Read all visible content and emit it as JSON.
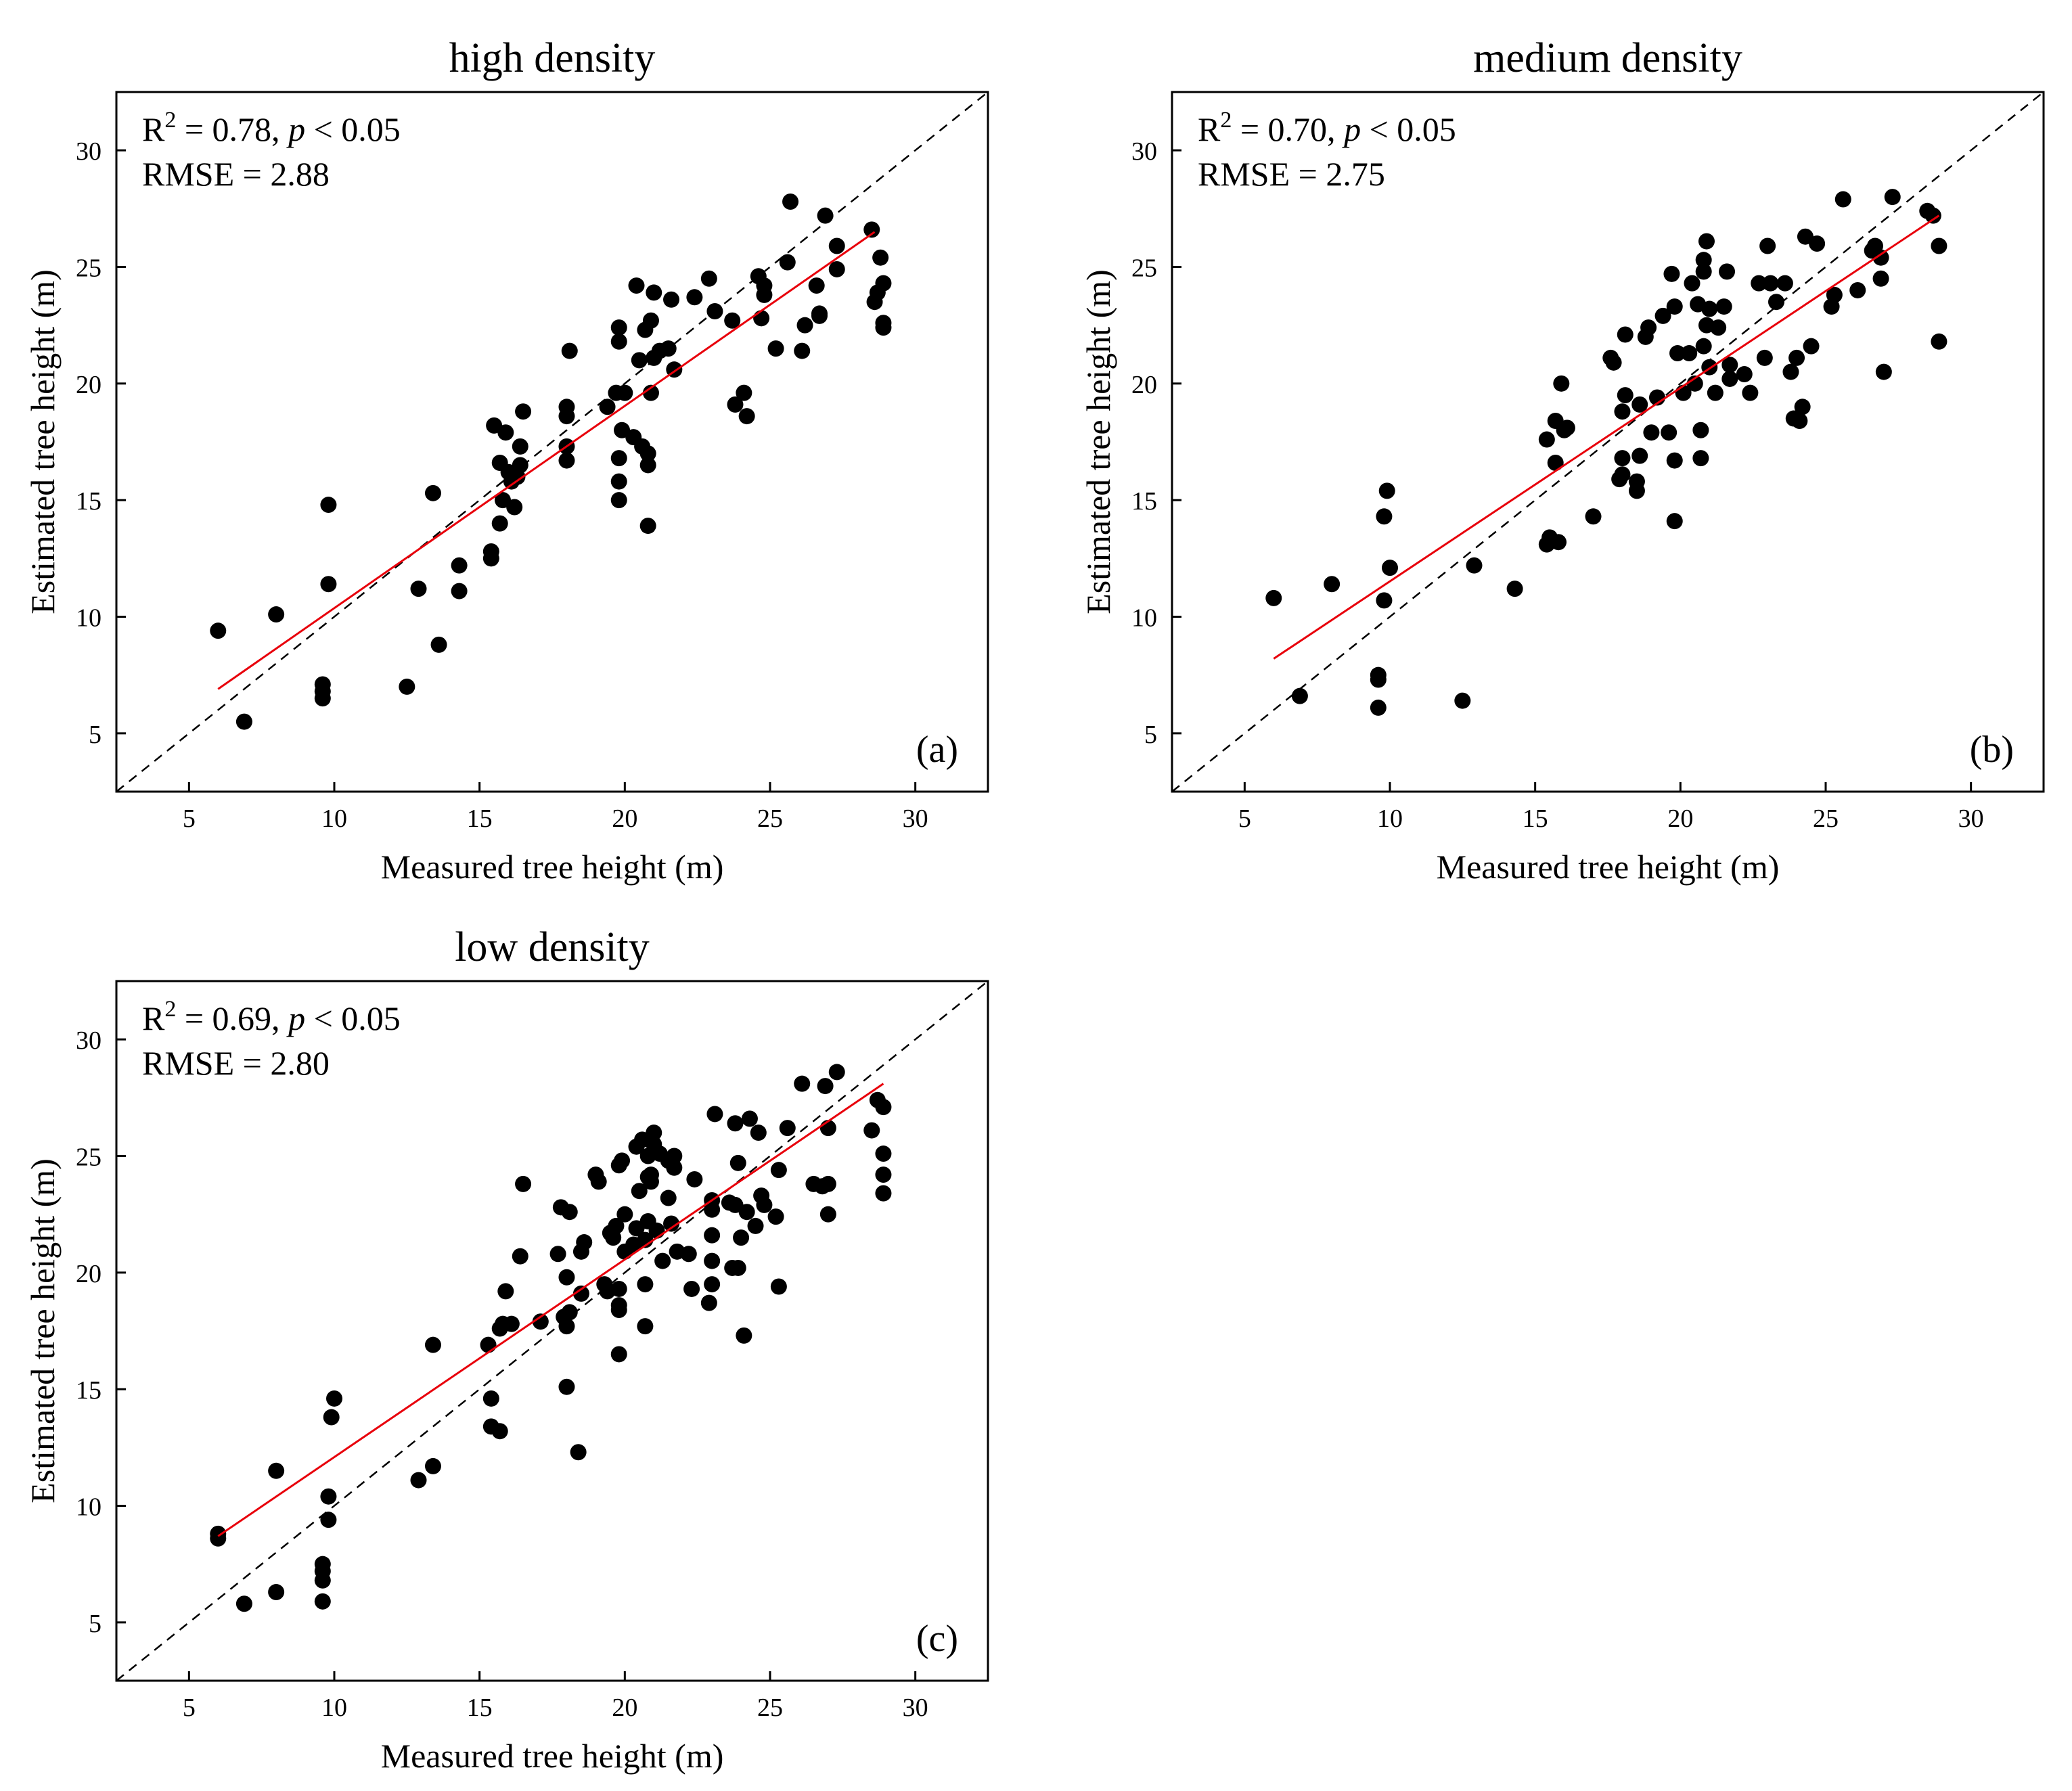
{
  "chart_data": [
    {
      "type": "scatter",
      "title": "high density",
      "panel_label": "(a)",
      "xlabel": "Measured tree height (m)",
      "ylabel": "Estimated tree height (m)",
      "xlim": [
        2.5,
        32.5
      ],
      "ylim": [
        2.5,
        32.5
      ],
      "xticks": [
        "5",
        "10",
        "15",
        "20",
        "25",
        "30"
      ],
      "yticks": [
        "5",
        "10",
        "15",
        "20",
        "25",
        "30"
      ],
      "r2_prefix": "R",
      "r2_sup": "2",
      "r2_value": " = 0.78, ",
      "p_symbol": "p",
      "p_value": " < 0.05",
      "rmse": "RMSE = 2.88",
      "reference_line": {
        "color": "#000000",
        "style": "dashed",
        "from": [
          2.5,
          2.5
        ],
        "to": [
          32.5,
          32.5
        ]
      },
      "fit_line": {
        "color": "#e8000b",
        "from": [
          6.0,
          6.9
        ],
        "to": [
          28.6,
          26.5
        ]
      },
      "x": [
        6.0,
        6.9,
        8.0,
        9.6,
        9.6,
        9.6,
        9.8,
        9.8,
        12.5,
        12.9,
        13.4,
        13.6,
        14.3,
        14.3,
        15.4,
        15.4,
        15.5,
        15.7,
        15.7,
        15.8,
        15.9,
        16.0,
        16.1,
        16.2,
        16.3,
        16.4,
        16.4,
        16.5,
        18.0,
        18.0,
        18.0,
        18.0,
        18.1,
        19.4,
        19.7,
        19.8,
        19.8,
        19.8,
        19.8,
        19.8,
        19.9,
        20.0,
        20.3,
        20.4,
        20.5,
        20.6,
        20.7,
        20.8,
        20.8,
        20.8,
        20.9,
        20.9,
        21.0,
        21.0,
        21.2,
        21.5,
        21.6,
        21.7,
        22.4,
        22.9,
        23.1,
        23.7,
        23.8,
        24.1,
        24.2,
        24.6,
        24.7,
        24.8,
        24.8,
        25.2,
        25.6,
        25.7,
        26.1,
        26.2,
        26.6,
        26.7,
        26.7,
        26.9,
        27.3,
        27.3,
        28.5,
        28.6,
        28.7,
        28.8,
        28.9,
        28.9,
        28.9
      ],
      "y": [
        9.4,
        5.5,
        10.1,
        6.5,
        6.8,
        7.1,
        11.4,
        14.8,
        7.0,
        11.2,
        15.3,
        8.8,
        11.1,
        12.2,
        12.5,
        12.8,
        18.2,
        14.0,
        16.6,
        15.0,
        17.9,
        16.2,
        15.8,
        14.7,
        16.0,
        16.5,
        17.3,
        18.8,
        16.7,
        17.3,
        18.6,
        19.0,
        21.4,
        19.0,
        19.6,
        15.0,
        15.8,
        16.8,
        21.8,
        22.4,
        18.0,
        19.6,
        17.7,
        24.2,
        21.0,
        17.3,
        22.3,
        13.9,
        16.5,
        17.0,
        19.6,
        22.7,
        23.9,
        21.1,
        21.4,
        21.5,
        23.6,
        20.6,
        23.7,
        24.5,
        23.1,
        22.7,
        19.1,
        19.6,
        18.6,
        24.6,
        22.8,
        23.8,
        24.2,
        21.5,
        25.2,
        27.8,
        21.4,
        22.5,
        24.2,
        22.9,
        23.0,
        27.2,
        24.9,
        25.9,
        26.6,
        23.5,
        23.9,
        25.4,
        22.4,
        22.6,
        24.3
      ]
    },
    {
      "type": "scatter",
      "title": "medium density",
      "panel_label": "(b)",
      "xlabel": "Measured tree height (m)",
      "ylabel": "Estimated tree height (m)",
      "xlim": [
        2.5,
        32.5
      ],
      "ylim": [
        2.5,
        32.5
      ],
      "xticks": [
        "5",
        "10",
        "15",
        "20",
        "25",
        "30"
      ],
      "yticks": [
        "5",
        "10",
        "15",
        "20",
        "25",
        "30"
      ],
      "r2_prefix": "R",
      "r2_sup": "2",
      "r2_value": " = 0.70, ",
      "p_symbol": "p",
      "p_value": " < 0.05",
      "rmse": "RMSE = 2.75",
      "reference_line": {
        "color": "#000000",
        "style": "dashed",
        "from": [
          2.5,
          2.5
        ],
        "to": [
          32.5,
          32.5
        ]
      },
      "fit_line": {
        "color": "#e8000b",
        "from": [
          6.0,
          8.2
        ],
        "to": [
          28.9,
          27.2
        ]
      },
      "x": [
        6.0,
        6.9,
        8.0,
        9.6,
        9.6,
        9.6,
        9.8,
        9.8,
        9.9,
        10.0,
        12.5,
        12.9,
        14.3,
        15.4,
        15.4,
        15.5,
        15.7,
        15.7,
        15.8,
        15.9,
        16.0,
        16.1,
        17.0,
        17.6,
        17.7,
        17.9,
        18.0,
        18.0,
        18.0,
        18.1,
        18.1,
        18.5,
        18.5,
        18.6,
        18.6,
        18.8,
        18.9,
        19.0,
        19.2,
        19.4,
        19.6,
        19.7,
        19.8,
        19.8,
        19.8,
        19.9,
        20.1,
        20.3,
        20.4,
        20.5,
        20.6,
        20.7,
        20.7,
        20.8,
        20.8,
        20.8,
        20.9,
        20.9,
        21.0,
        21.0,
        21.2,
        21.3,
        21.5,
        21.6,
        21.7,
        21.7,
        22.2,
        22.4,
        22.7,
        22.9,
        23.0,
        23.1,
        23.3,
        23.6,
        23.8,
        23.9,
        24.0,
        24.1,
        24.2,
        24.3,
        24.5,
        24.7,
        25.2,
        25.3,
        25.6,
        26.1,
        26.6,
        26.7,
        26.9,
        26.9,
        27.0,
        27.3,
        28.5,
        28.7,
        28.9,
        28.9
      ],
      "y": [
        10.8,
        6.6,
        11.4,
        6.1,
        7.3,
        7.5,
        10.7,
        14.3,
        15.4,
        12.1,
        6.4,
        12.2,
        11.2,
        13.1,
        17.6,
        13.4,
        16.6,
        18.4,
        13.2,
        20.0,
        18.0,
        18.1,
        14.3,
        21.1,
        20.9,
        15.9,
        16.1,
        16.8,
        18.8,
        19.5,
        22.1,
        15.4,
        15.8,
        16.9,
        19.1,
        22.0,
        22.4,
        17.9,
        19.4,
        22.9,
        17.9,
        24.7,
        14.1,
        16.7,
        23.3,
        21.3,
        19.6,
        21.3,
        24.3,
        20.0,
        23.4,
        16.8,
        18.0,
        21.6,
        24.8,
        25.3,
        22.5,
        26.1,
        23.2,
        20.7,
        19.6,
        22.4,
        23.3,
        24.8,
        20.2,
        20.8,
        20.4,
        19.6,
        24.3,
        21.1,
        25.9,
        24.3,
        23.5,
        24.3,
        20.5,
        18.5,
        21.1,
        18.4,
        19.0,
        26.3,
        21.6,
        26.0,
        23.3,
        23.8,
        27.9,
        24.0,
        25.7,
        25.9,
        24.5,
        25.4,
        20.5,
        28.0,
        27.4,
        27.2,
        25.9,
        21.8
      ]
    },
    {
      "type": "scatter",
      "title": "low density",
      "panel_label": "(c)",
      "xlabel": "Measured tree height (m)",
      "ylabel": "Estimated tree height (m)",
      "xlim": [
        2.5,
        32.5
      ],
      "ylim": [
        2.5,
        32.5
      ],
      "xticks": [
        "5",
        "10",
        "15",
        "20",
        "25",
        "30"
      ],
      "yticks": [
        "5",
        "10",
        "15",
        "20",
        "25",
        "30"
      ],
      "r2_prefix": "R",
      "r2_sup": "2",
      "r2_value": " = 0.69, ",
      "p_symbol": "p",
      "p_value": " < 0.05",
      "rmse": "RMSE = 2.80",
      "reference_line": {
        "color": "#000000",
        "style": "dashed",
        "from": [
          2.5,
          2.5
        ],
        "to": [
          32.5,
          32.5
        ]
      },
      "fit_line": {
        "color": "#e8000b",
        "from": [
          6.0,
          8.7
        ],
        "to": [
          28.9,
          28.1
        ]
      },
      "x": [
        6.0,
        6.0,
        6.9,
        8.0,
        8.0,
        9.6,
        9.6,
        9.6,
        9.6,
        9.8,
        9.8,
        9.9,
        10.0,
        12.9,
        13.4,
        13.4,
        15.3,
        15.4,
        15.4,
        15.7,
        15.7,
        15.8,
        15.9,
        16.1,
        16.4,
        16.5,
        17.1,
        17.7,
        17.8,
        17.9,
        18.0,
        18.0,
        18.0,
        18.1,
        18.1,
        18.4,
        18.5,
        18.5,
        18.6,
        19.0,
        19.1,
        19.3,
        19.4,
        19.5,
        19.6,
        19.7,
        19.8,
        19.8,
        19.8,
        19.8,
        19.8,
        19.9,
        20.0,
        20.0,
        20.3,
        20.4,
        20.4,
        20.5,
        20.6,
        20.7,
        20.7,
        20.7,
        20.8,
        20.8,
        20.8,
        20.9,
        20.9,
        21.0,
        21.0,
        21.1,
        21.2,
        21.3,
        21.5,
        21.5,
        21.6,
        21.7,
        21.7,
        21.8,
        22.2,
        22.3,
        22.4,
        22.9,
        23.0,
        23.0,
        23.0,
        23.0,
        23.0,
        23.1,
        23.6,
        23.7,
        23.8,
        23.8,
        23.9,
        23.9,
        24.0,
        24.1,
        24.2,
        24.3,
        24.5,
        24.6,
        24.7,
        24.8,
        25.2,
        25.3,
        25.3,
        25.6,
        26.1,
        26.5,
        26.8,
        26.9,
        27.0,
        27.0,
        27.0,
        27.3,
        28.5,
        28.7,
        28.9,
        28.9,
        28.9,
        28.9
      ],
      "y": [
        8.6,
        8.8,
        5.8,
        6.3,
        11.5,
        5.9,
        6.8,
        7.2,
        7.5,
        9.4,
        10.4,
        13.8,
        14.6,
        11.1,
        11.7,
        16.9,
        16.9,
        13.4,
        14.6,
        13.2,
        17.6,
        17.8,
        19.2,
        17.8,
        20.7,
        23.8,
        17.9,
        20.8,
        22.8,
        18.1,
        15.1,
        17.7,
        19.8,
        22.6,
        18.3,
        12.3,
        19.1,
        20.9,
        21.3,
        24.2,
        23.9,
        19.5,
        19.2,
        21.7,
        21.5,
        22.0,
        16.5,
        18.4,
        18.6,
        19.3,
        24.6,
        24.8,
        22.5,
        20.9,
        21.2,
        21.9,
        25.4,
        23.5,
        25.7,
        17.7,
        19.5,
        21.4,
        22.2,
        24.1,
        25.0,
        24.2,
        23.9,
        26.0,
        25.5,
        21.8,
        25.1,
        20.5,
        23.2,
        24.8,
        22.1,
        24.5,
        25.0,
        20.9,
        20.8,
        19.3,
        24.0,
        18.7,
        19.5,
        20.5,
        21.6,
        22.7,
        23.1,
        26.8,
        23.0,
        20.2,
        22.9,
        26.4,
        24.7,
        20.2,
        21.5,
        17.3,
        22.6,
        26.6,
        22.0,
        26.0,
        23.3,
        22.9,
        22.4,
        24.4,
        19.4,
        26.2,
        28.1,
        23.8,
        23.7,
        28.0,
        22.5,
        23.8,
        26.2,
        28.6,
        26.1,
        27.4,
        27.1,
        23.4,
        24.2,
        25.1
      ]
    }
  ]
}
